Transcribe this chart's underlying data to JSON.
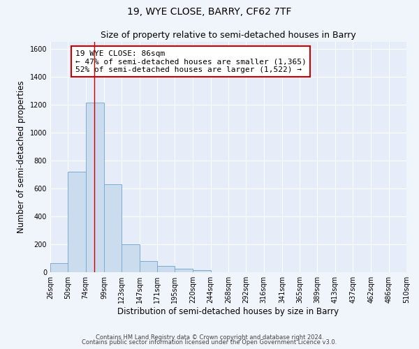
{
  "title1": "19, WYE CLOSE, BARRY, CF62 7TF",
  "title2": "Size of property relative to semi-detached houses in Barry",
  "xlabel": "Distribution of semi-detached houses by size in Barry",
  "ylabel": "Number of semi-detached properties",
  "bin_edges": [
    26,
    50,
    74,
    99,
    123,
    147,
    171,
    195,
    220,
    244,
    268,
    292,
    316,
    341,
    365,
    389,
    413,
    437,
    462,
    486,
    510
  ],
  "bar_heights": [
    65,
    720,
    1215,
    630,
    200,
    80,
    45,
    25,
    15,
    0,
    0,
    0,
    0,
    0,
    0,
    0,
    0,
    0,
    0,
    0
  ],
  "bar_color": "#ccdcef",
  "bar_edge_color": "#7aadd4",
  "bar_linewidth": 0.7,
  "vline_x": 86,
  "vline_color": "#cc0000",
  "annotation_line1": "19 WYE CLOSE: 86sqm",
  "annotation_line2": "← 47% of semi-detached houses are smaller (1,365)",
  "annotation_line3": "52% of semi-detached houses are larger (1,522) →",
  "ylim": [
    0,
    1650
  ],
  "yticks": [
    0,
    200,
    400,
    600,
    800,
    1000,
    1200,
    1400,
    1600
  ],
  "tick_labels": [
    "26sqm",
    "50sqm",
    "74sqm",
    "99sqm",
    "123sqm",
    "147sqm",
    "171sqm",
    "195sqm",
    "220sqm",
    "244sqm",
    "268sqm",
    "292sqm",
    "316sqm",
    "341sqm",
    "365sqm",
    "389sqm",
    "413sqm",
    "437sqm",
    "462sqm",
    "486sqm",
    "510sqm"
  ],
  "footer_line1": "Contains HM Land Registry data © Crown copyright and database right 2024.",
  "footer_line2": "Contains public sector information licensed under the Open Government Licence v3.0.",
  "bg_color": "#f0f4fb",
  "plot_bg_color": "#e6edf8",
  "grid_color": "#ffffff",
  "title_fontsize": 10,
  "subtitle_fontsize": 9,
  "axis_label_fontsize": 8.5,
  "tick_fontsize": 7,
  "footer_fontsize": 6,
  "annotation_fontsize": 8
}
